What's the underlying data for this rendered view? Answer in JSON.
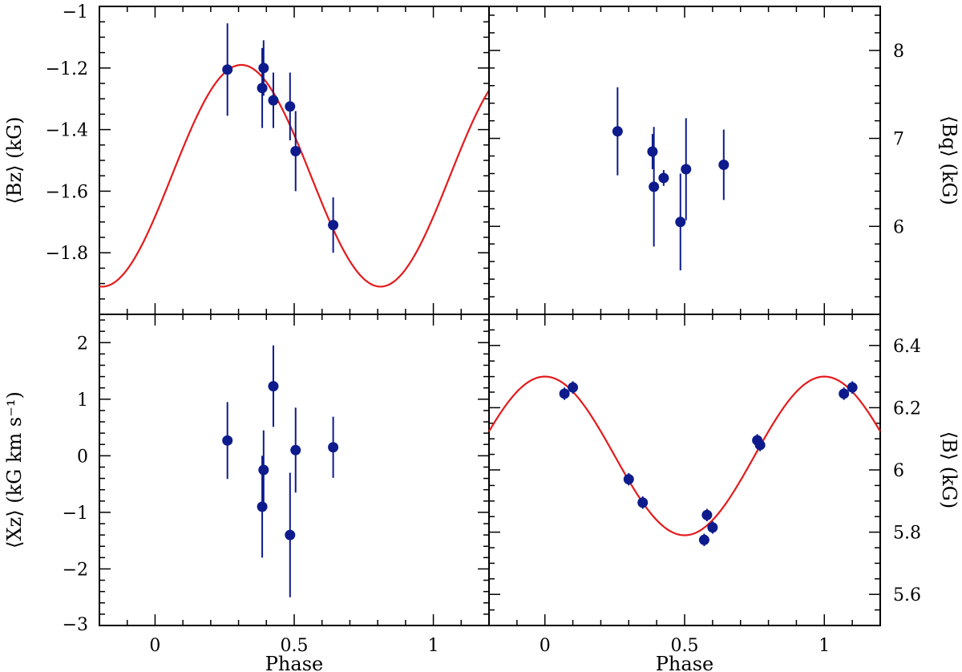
{
  "chart_data": [
    {
      "id": "bz",
      "type": "scatter",
      "xlim": [
        -0.2,
        1.2
      ],
      "ylim": [
        -2.0,
        -1.0
      ],
      "ylabel": "⟨Bz⟩ (kG)",
      "ylabel_side": "left",
      "yticks": [
        -1.8,
        -1.6,
        -1.4,
        -1.2,
        -1.0
      ],
      "ytick_labels": [
        "−1.8",
        "−1.6",
        "−1.4",
        "−1.2",
        "−1"
      ],
      "yminor_step": 0.05,
      "fit": {
        "mean": -1.55,
        "amp": 0.36,
        "phase0": 0.31
      },
      "points": [
        {
          "x": 0.26,
          "y": -1.205,
          "err": 0.15
        },
        {
          "x": 0.385,
          "y": -1.265,
          "err": 0.13
        },
        {
          "x": 0.39,
          "y": -1.2,
          "err": 0.09
        },
        {
          "x": 0.425,
          "y": -1.305,
          "err": 0.09
        },
        {
          "x": 0.485,
          "y": -1.325,
          "err": 0.11
        },
        {
          "x": 0.505,
          "y": -1.47,
          "err": 0.13
        },
        {
          "x": 0.64,
          "y": -1.71,
          "err": 0.09
        }
      ]
    },
    {
      "id": "bq",
      "type": "scatter",
      "xlim": [
        -0.2,
        1.2
      ],
      "ylim": [
        5.0,
        8.5
      ],
      "ylabel": "⟨Bq⟩ (kG)",
      "ylabel_side": "right",
      "yticks": [
        6,
        7,
        8
      ],
      "ytick_labels": [
        "6",
        "7",
        "8"
      ],
      "yminor_step": 0.2,
      "points": [
        {
          "x": 0.26,
          "y": 7.08,
          "err": 0.5
        },
        {
          "x": 0.385,
          "y": 6.85,
          "err": 0.2
        },
        {
          "x": 0.39,
          "y": 6.45,
          "err": 0.68
        },
        {
          "x": 0.425,
          "y": 6.55,
          "err": 0.09
        },
        {
          "x": 0.485,
          "y": 6.05,
          "err": 0.55
        },
        {
          "x": 0.505,
          "y": 6.65,
          "err": 0.58
        },
        {
          "x": 0.64,
          "y": 6.7,
          "err": 0.4
        }
      ]
    },
    {
      "id": "xz",
      "type": "scatter",
      "xlim": [
        -0.2,
        1.2
      ],
      "xticks": [
        0,
        0.5,
        1
      ],
      "xtick_labels": [
        "0",
        "0.5",
        "1"
      ],
      "xlabel": "Phase",
      "ylim": [
        -3.0,
        2.5
      ],
      "ylabel": "⟨Xz⟩ (kG km s⁻¹)",
      "ylabel_side": "left",
      "yticks": [
        -3,
        -2,
        -1,
        0,
        1,
        2
      ],
      "ytick_labels": [
        "−3",
        "−2",
        "−1",
        "0",
        "1",
        "2"
      ],
      "yminor_step": 0.2,
      "points": [
        {
          "x": 0.26,
          "y": 0.27,
          "err": 0.68
        },
        {
          "x": 0.385,
          "y": -0.9,
          "err": 0.9
        },
        {
          "x": 0.39,
          "y": -0.25,
          "err": 0.7
        },
        {
          "x": 0.425,
          "y": 1.23,
          "err": 0.72
        },
        {
          "x": 0.485,
          "y": -1.4,
          "err": 1.1
        },
        {
          "x": 0.505,
          "y": 0.1,
          "err": 0.75
        },
        {
          "x": 0.64,
          "y": 0.15,
          "err": 0.54
        }
      ]
    },
    {
      "id": "b",
      "type": "scatter",
      "xlim": [
        -0.2,
        1.2
      ],
      "xticks": [
        0,
        0.5,
        1
      ],
      "xtick_labels": [
        "0",
        "0.5",
        "1"
      ],
      "xlabel": "Phase",
      "ylim": [
        5.5,
        6.5
      ],
      "ylabel": "⟨B⟩ (kG)",
      "ylabel_side": "right",
      "yticks": [
        5.6,
        5.8,
        6.0,
        6.2,
        6.4
      ],
      "ytick_labels": [
        "5.6",
        "5.8",
        "6",
        "6.2",
        "6.4"
      ],
      "yminor_step": 0.05,
      "fit": {
        "mean": 6.045,
        "amp": 0.255,
        "phase0": 0.0
      },
      "points": [
        {
          "x": 0.07,
          "y": 6.245,
          "err": 0.02
        },
        {
          "x": 0.1,
          "y": 6.265,
          "err": 0.02
        },
        {
          "x": 0.3,
          "y": 5.97,
          "err": 0.02
        },
        {
          "x": 0.35,
          "y": 5.895,
          "err": 0.02
        },
        {
          "x": 0.57,
          "y": 5.775,
          "err": 0.02
        },
        {
          "x": 0.58,
          "y": 5.855,
          "err": 0.02
        },
        {
          "x": 0.6,
          "y": 5.815,
          "err": 0.02
        },
        {
          "x": 0.76,
          "y": 6.095,
          "err": 0.02
        },
        {
          "x": 0.77,
          "y": 6.08,
          "err": 0.02
        },
        {
          "x": 1.07,
          "y": 6.245,
          "err": 0.02
        },
        {
          "x": 1.1,
          "y": 6.265,
          "err": 0.02
        }
      ]
    }
  ]
}
